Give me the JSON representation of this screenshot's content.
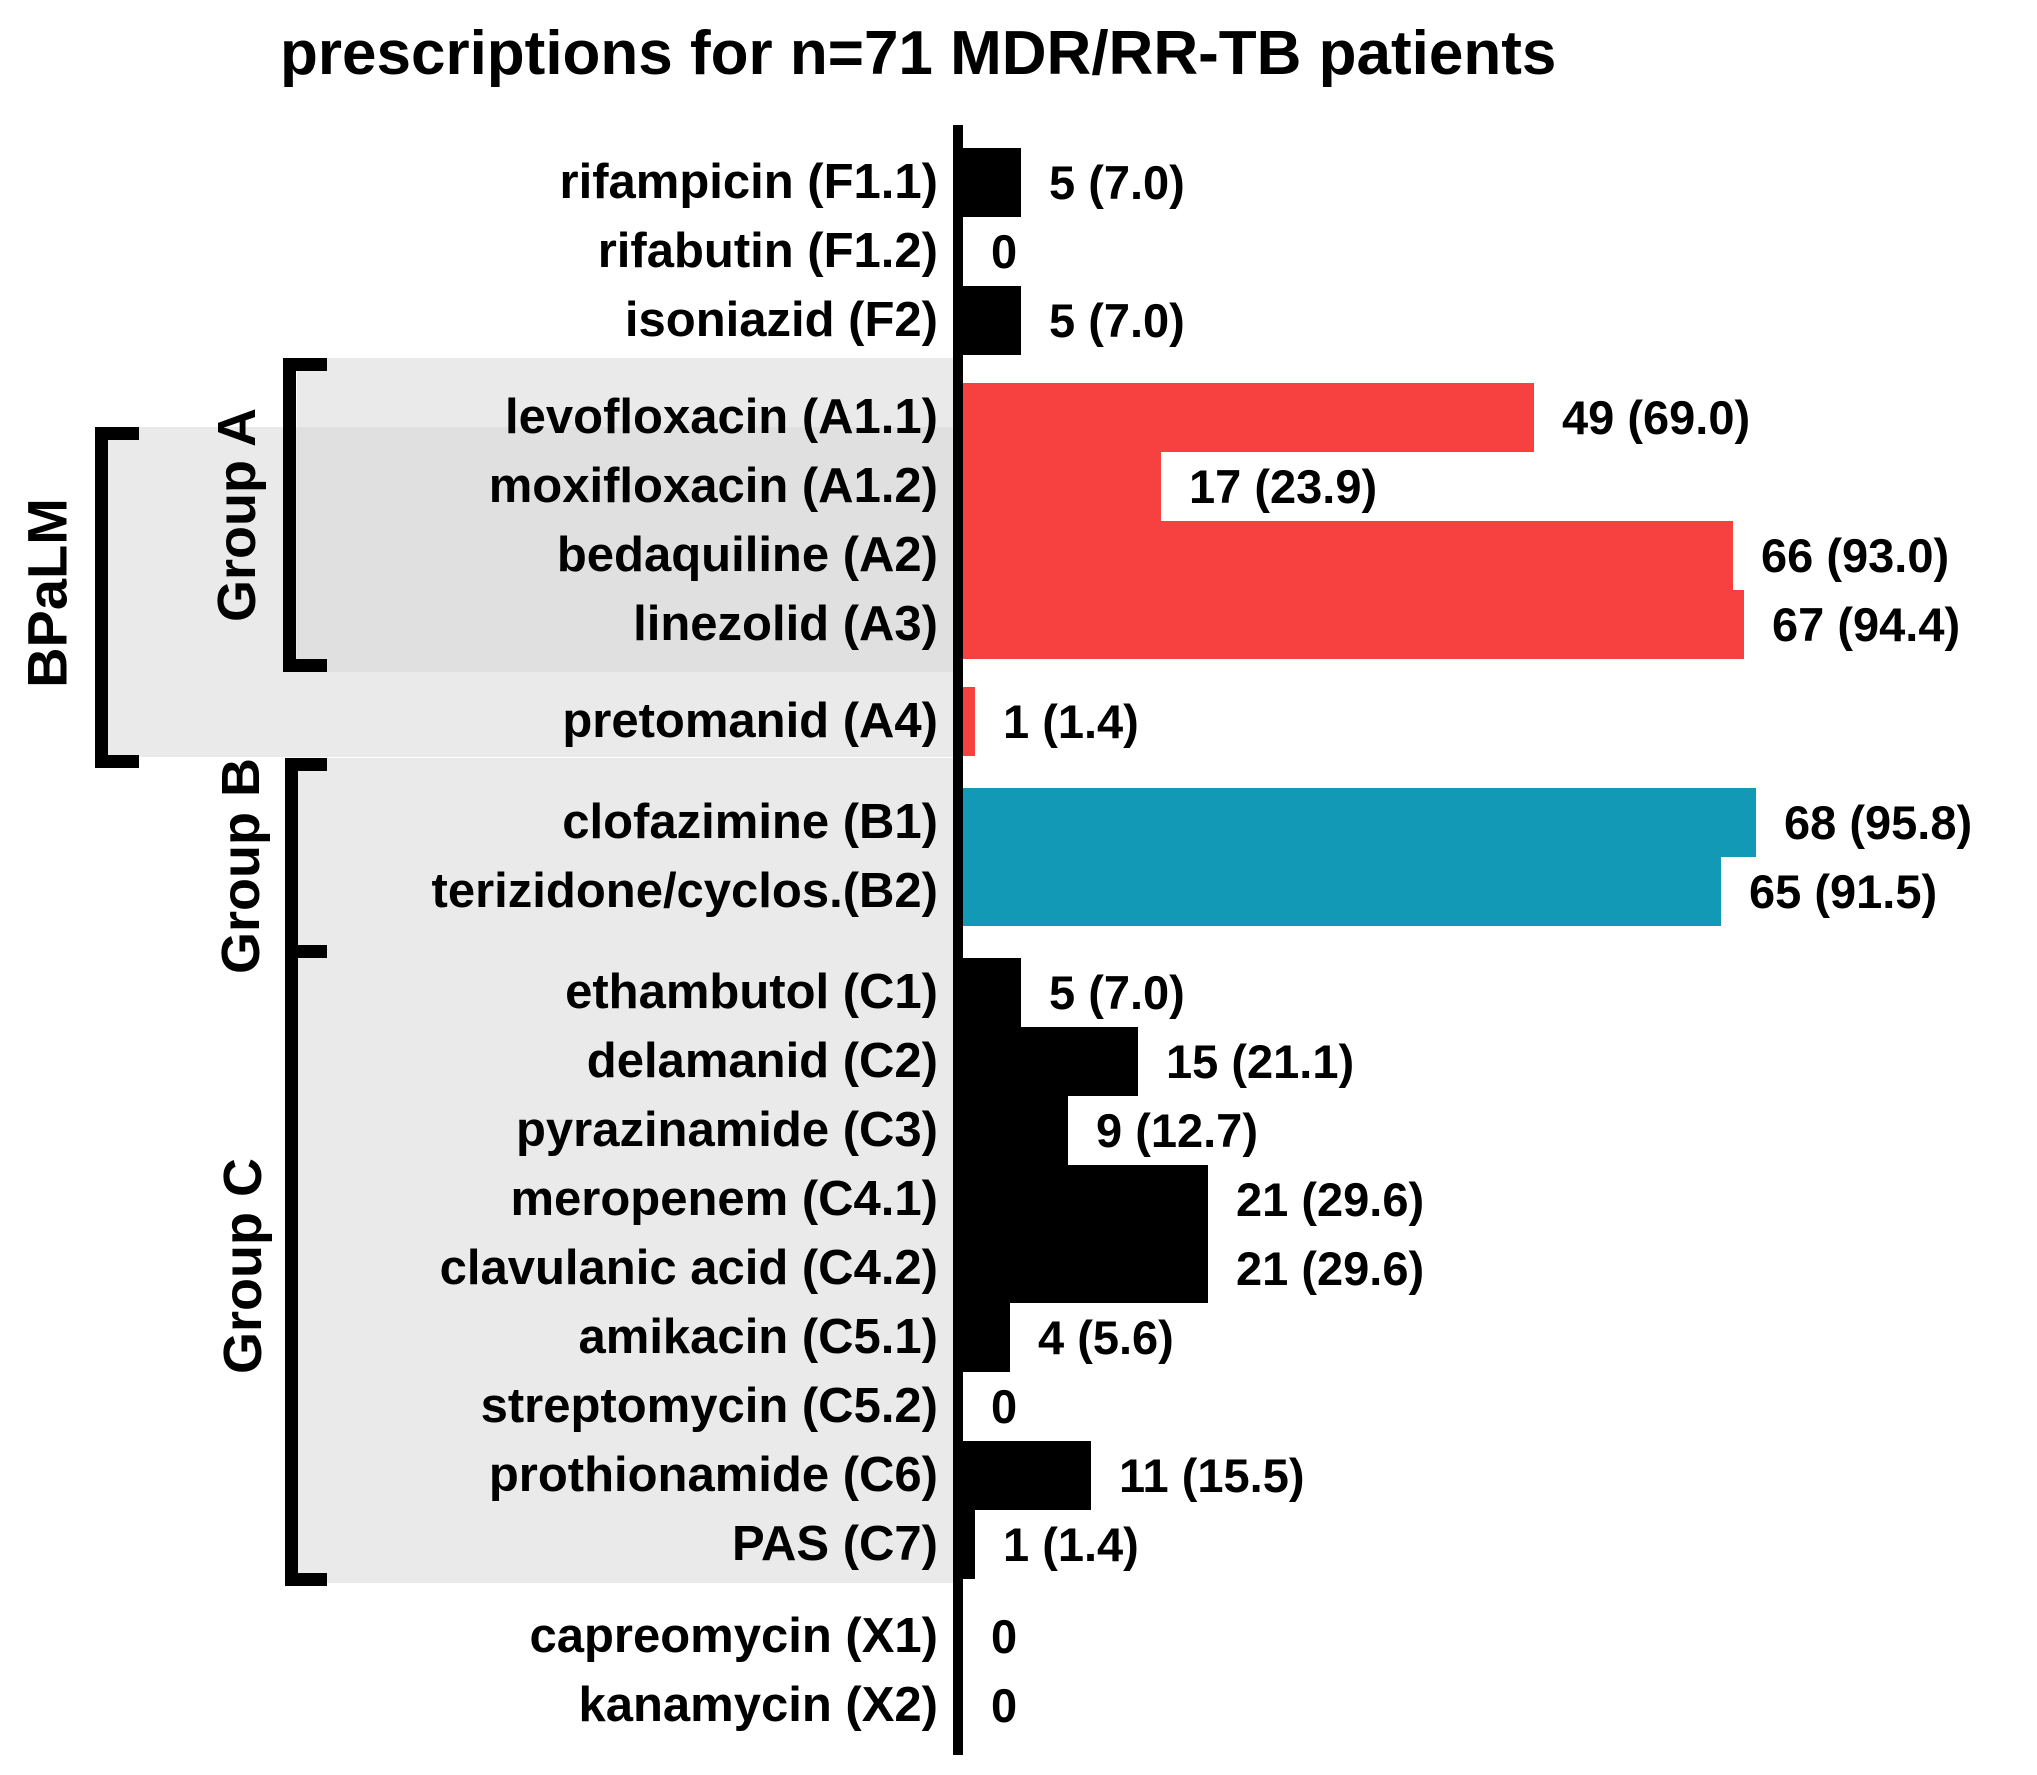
{
  "title": "prescriptions for n=71 MDR/RR-TB patients",
  "colors": {
    "red": "#F74040",
    "teal": "#1199B5",
    "black": "#000000",
    "panel": "#EAEAEA",
    "panel_overlap": "#E0E0E0",
    "axis": "#000000"
  },
  "group_labels": {
    "bpalm": "BPaLM",
    "group_a": "Group A",
    "group_b": "Group B",
    "group_c": "Group C"
  },
  "chart_data": {
    "type": "bar",
    "orientation": "horizontal",
    "title": "prescriptions for n=71 MDR/RR-TB patients",
    "n_total": 71,
    "xlim": [
      0,
      71
    ],
    "grid": false,
    "legend": "none",
    "value_label_format": "count (percent)",
    "rows": [
      {
        "label": "rifampicin (F1.1)",
        "group": "F",
        "value": 5,
        "percent": 7.0,
        "value_label": "5 (7.0)",
        "color": "black"
      },
      {
        "label": "rifabutin (F1.2)",
        "group": "F",
        "value": 0,
        "percent": 0,
        "value_label": "0",
        "color": "black"
      },
      {
        "label": "isoniazid (F2)",
        "group": "F",
        "value": 5,
        "percent": 7.0,
        "value_label": "5 (7.0)",
        "color": "black"
      },
      {
        "label": "levofloxacin (A1.1)",
        "group": "A",
        "value": 49,
        "percent": 69.0,
        "value_label": "49 (69.0)",
        "color": "red"
      },
      {
        "label": "moxifloxacin (A1.2)",
        "group": "A",
        "value": 17,
        "percent": 23.9,
        "value_label": "17 (23.9)",
        "color": "red"
      },
      {
        "label": "bedaquiline (A2)",
        "group": "A",
        "value": 66,
        "percent": 93.0,
        "value_label": "66 (93.0)",
        "color": "red"
      },
      {
        "label": "linezolid (A3)",
        "group": "A",
        "value": 67,
        "percent": 94.4,
        "value_label": "67 (94.4)",
        "color": "red"
      },
      {
        "label": "pretomanid (A4)",
        "group": "A",
        "value": 1,
        "percent": 1.4,
        "value_label": "1 (1.4)",
        "color": "red"
      },
      {
        "label": "clofazimine (B1)",
        "group": "B",
        "value": 68,
        "percent": 95.8,
        "value_label": "68 (95.8)",
        "color": "teal"
      },
      {
        "label": "terizidone/cyclos.(B2)",
        "group": "B",
        "value": 65,
        "percent": 91.5,
        "value_label": "65 (91.5)",
        "color": "teal"
      },
      {
        "label": "ethambutol (C1)",
        "group": "C",
        "value": 5,
        "percent": 7.0,
        "value_label": "5 (7.0)",
        "color": "black"
      },
      {
        "label": "delamanid (C2)",
        "group": "C",
        "value": 15,
        "percent": 21.1,
        "value_label": "15 (21.1)",
        "color": "black"
      },
      {
        "label": "pyrazinamide (C3)",
        "group": "C",
        "value": 9,
        "percent": 12.7,
        "value_label": "9 (12.7)",
        "color": "black"
      },
      {
        "label": "meropenem (C4.1)",
        "group": "C",
        "value": 21,
        "percent": 29.6,
        "value_label": "21 (29.6)",
        "color": "black"
      },
      {
        "label": "clavulanic acid (C4.2)",
        "group": "C",
        "value": 21,
        "percent": 29.6,
        "value_label": "21 (29.6)",
        "color": "black"
      },
      {
        "label": "amikacin (C5.1)",
        "group": "C",
        "value": 4,
        "percent": 5.6,
        "value_label": "4 (5.6)",
        "color": "black"
      },
      {
        "label": "streptomycin (C5.2)",
        "group": "C",
        "value": 0,
        "percent": 0,
        "value_label": "0",
        "color": "black"
      },
      {
        "label": "prothionamide (C6)",
        "group": "C",
        "value": 11,
        "percent": 15.5,
        "value_label": "11 (15.5)",
        "color": "black"
      },
      {
        "label": "PAS (C7)",
        "group": "C",
        "value": 1,
        "percent": 1.4,
        "value_label": "1 (1.4)",
        "color": "black"
      },
      {
        "label": "capreomycin (X1)",
        "group": "other",
        "value": 0,
        "percent": 0,
        "value_label": "0",
        "color": "black"
      },
      {
        "label": "kanamycin (X2)",
        "group": "other",
        "value": 0,
        "percent": 0,
        "value_label": "0",
        "color": "black"
      }
    ]
  }
}
